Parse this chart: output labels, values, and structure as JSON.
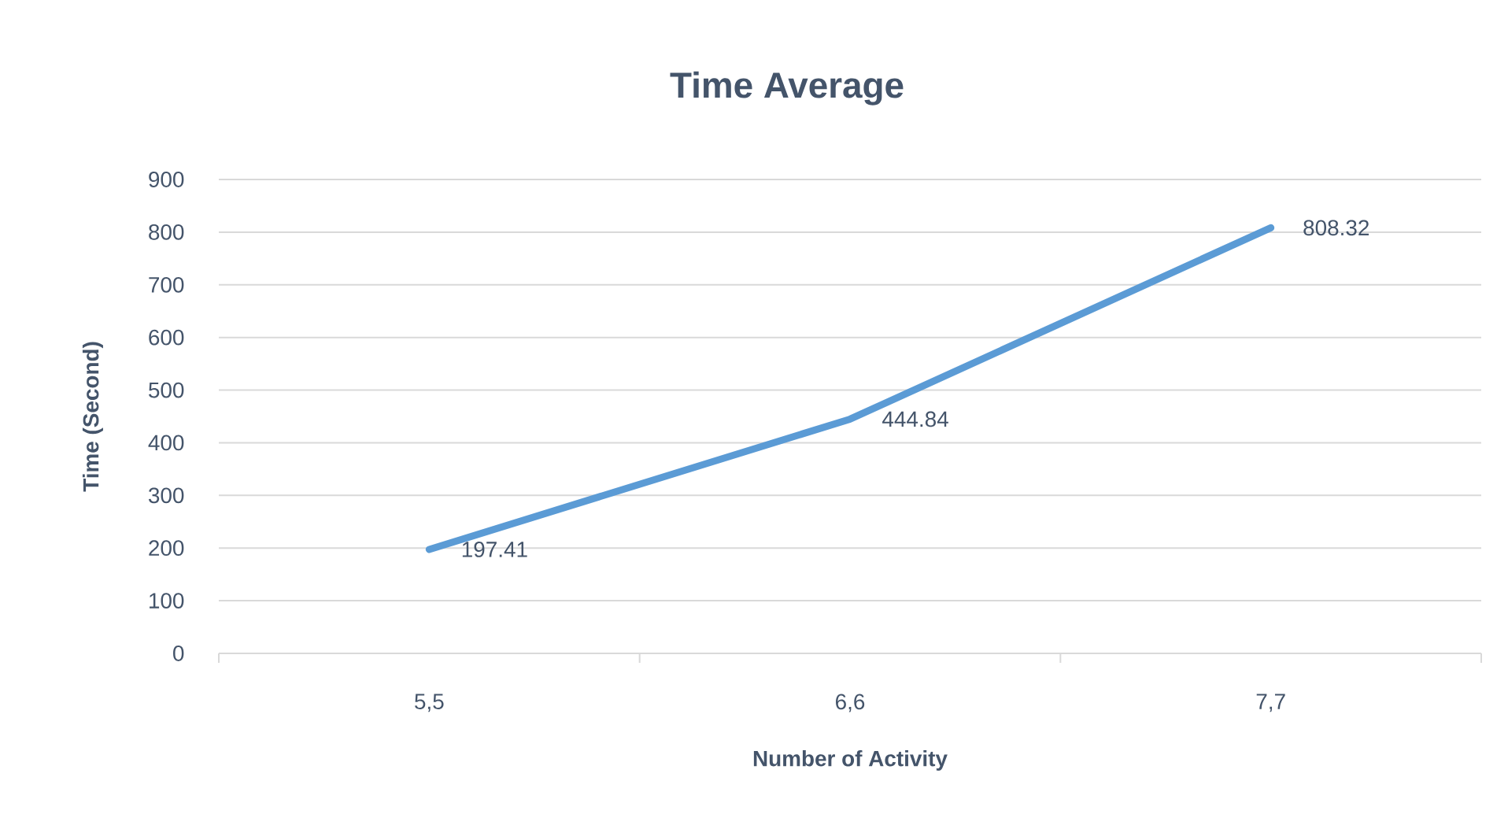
{
  "chart_data": {
    "type": "line",
    "title": "Time Average",
    "xlabel": "Number of Activity",
    "ylabel": "Time (Second)",
    "categories": [
      "5,5",
      "6,6",
      "7,7"
    ],
    "series": [
      {
        "color": "#5b9bd5",
        "values": [
          197.41,
          444.84,
          808.32
        ]
      }
    ],
    "ylim": [
      0,
      900
    ],
    "yticks": [
      0,
      100,
      200,
      300,
      400,
      500,
      600,
      700,
      800,
      900
    ],
    "grid": "y",
    "data_labels": true,
    "line_style": "solid"
  }
}
